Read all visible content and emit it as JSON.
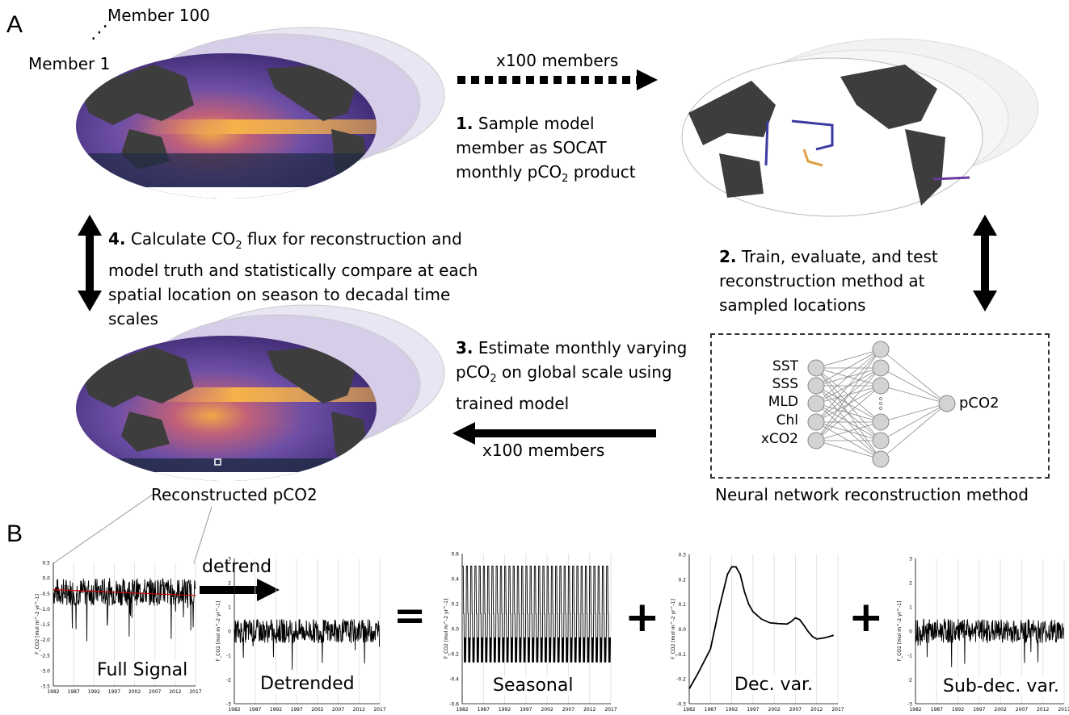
{
  "panels": {
    "a": "A",
    "b": "B"
  },
  "members": {
    "top": "Member 100",
    "bottom": "Member 1",
    "ellipsis": "⋰"
  },
  "arrows": {
    "top": "x100 members",
    "bottom": "x100 members",
    "detrend": "detrend"
  },
  "steps": {
    "s1": {
      "num": "1.",
      "pre": " Sample model member as SOCAT monthly pCO",
      "sub": "2",
      "post": " product"
    },
    "s2": {
      "num": "2.",
      "text": " Train, evaluate, and test reconstruction method at sampled locations"
    },
    "s3": {
      "num": "3.",
      "pre": " Estimate monthly varying pCO",
      "sub": "2",
      "post": " on global scale using trained model"
    },
    "s4": {
      "num": "4.",
      "pre": " Calculate CO",
      "sub": "2",
      "post": " flux for reconstruction and model truth and statistically compare at each spatial location on season to decadal time scales"
    }
  },
  "map_labels": {
    "reconstructed": "Reconstructed pCO2"
  },
  "nn": {
    "inputs": [
      "SST",
      "SSS",
      "MLD",
      "Chl",
      "xCO2"
    ],
    "output": "pCO2",
    "caption": "Neural network reconstruction method"
  },
  "operators": {
    "equals": "=",
    "plus1": "+",
    "plus2": "+"
  },
  "colors": {
    "land": "#3d3d3d",
    "ocean_dark": "#2b1b5e",
    "ocean_mid": "#7a5cb0",
    "ocean_hot": "#f5b24a",
    "trend": "#cc0000"
  },
  "chart_data": [
    {
      "type": "line",
      "title": "Full Signal",
      "ylabel": "F_CO2 [mol m^-2 yr^-1]",
      "xlim": [
        1982,
        2017
      ],
      "ylim": [
        -3.5,
        0.5
      ],
      "yticks": [
        "0.5",
        "0.0",
        "-0.5",
        "-1.0",
        "-1.5",
        "-2.0",
        "-2.5",
        "-3.0",
        "-3.5"
      ],
      "xticks": [
        "1982",
        "1987",
        "1992",
        "1997",
        "2002",
        "2007",
        "2012",
        "2017"
      ],
      "trend": {
        "x": [
          1982,
          2017
        ],
        "y": [
          -0.38,
          -0.57
        ]
      }
    },
    {
      "type": "line",
      "title": "Detrended",
      "ylabel": "F_CO2 [mol m^-2 yr^-1]",
      "xlim": [
        1982,
        2017
      ],
      "ylim": [
        -3,
        3
      ],
      "yticks": [
        "3",
        "2",
        "1",
        "0",
        "-1",
        "-2",
        "-3"
      ],
      "xticks": [
        "1982",
        "1987",
        "1992",
        "1997",
        "2002",
        "2007",
        "2012",
        "2017"
      ]
    },
    {
      "type": "line",
      "title": "Seasonal",
      "ylabel": "F_CO2 [mol m^-2 yr^-1]",
      "xlim": [
        1982,
        2017
      ],
      "ylim": [
        -0.6,
        0.6
      ],
      "yticks": [
        "0.6",
        "0.4",
        "0.2",
        "0.0",
        "-0.2",
        "-0.4",
        "-0.6"
      ],
      "xticks": [
        "1982",
        "1987",
        "1992",
        "1997",
        "2002",
        "2007",
        "2012",
        "2017"
      ],
      "max": 0.5,
      "min": -0.27
    },
    {
      "type": "line",
      "title": "Dec. var.",
      "ylabel": "F_CO2 [mol m^-2 yr^-1]",
      "xlim": [
        1982,
        2017
      ],
      "ylim": [
        -0.3,
        0.3
      ],
      "yticks": [
        "0.3",
        "0.2",
        "0.1",
        "0.0",
        "-0.1",
        "-0.2",
        "-0.3"
      ],
      "xticks": [
        "1982",
        "1987",
        "1992",
        "1997",
        "2002",
        "2007",
        "2012",
        "2017"
      ],
      "x": [
        1982,
        1984,
        1987,
        1989,
        1991,
        1992,
        1993,
        1994,
        1995,
        1996,
        1997,
        1999,
        2001,
        2003,
        2005,
        2006,
        2007,
        2008,
        2009,
        2010,
        2011,
        2012,
        2014,
        2016
      ],
      "y": [
        -0.24,
        -0.18,
        -0.08,
        0.08,
        0.22,
        0.25,
        0.25,
        0.22,
        0.15,
        0.1,
        0.07,
        0.04,
        0.025,
        0.022,
        0.02,
        0.03,
        0.045,
        0.038,
        0.015,
        -0.01,
        -0.03,
        -0.04,
        -0.035,
        -0.025
      ]
    },
    {
      "type": "line",
      "title": "Sub-dec. var.",
      "ylabel": "F_CO2 [mol m^-2 yr^-1]",
      "xlim": [
        1982,
        2017
      ],
      "ylim": [
        -3,
        3
      ],
      "yticks": [
        "3",
        "2",
        "1",
        "0",
        "-1",
        "-2",
        "-3"
      ],
      "xticks": [
        "1982",
        "1987",
        "1992",
        "1997",
        "2002",
        "2007",
        "2012",
        "2017"
      ]
    }
  ]
}
